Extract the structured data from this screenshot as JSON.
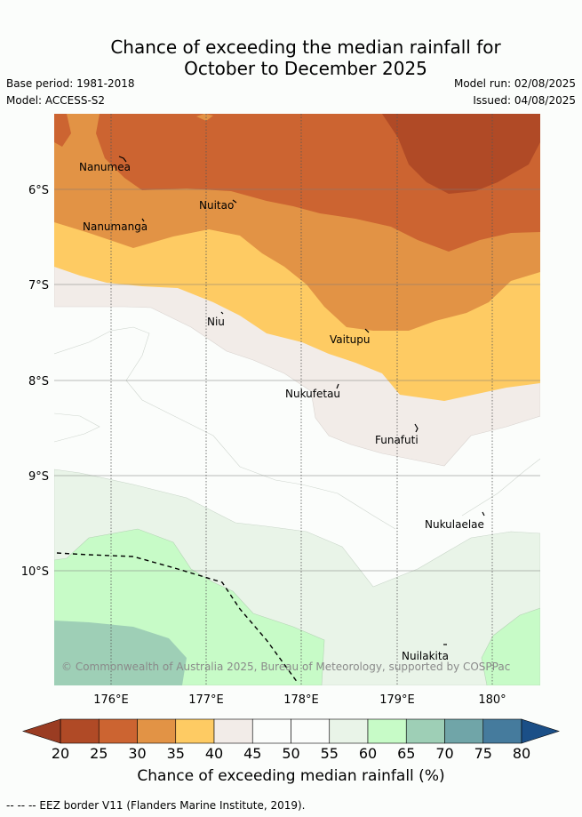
{
  "title_line1": "Chance of exceeding the median rainfall for",
  "title_line2": "October to December 2025",
  "base_period": "Base period: 1981-2018",
  "model": "Model: ACCESS-S2",
  "model_run": "Model run: 02/08/2025",
  "issued": "Issued: 04/08/2025",
  "copyright": "© Commonwealth of Australia 2025, Bureau of Meteorology, supported by COSPPac",
  "lat_ticks": [
    "6°S",
    "7°S",
    "8°S",
    "9°S",
    "10°S"
  ],
  "lon_ticks": [
    "176°E",
    "177°E",
    "178°E",
    "179°E",
    "180°"
  ],
  "places": [
    "Nanumea",
    "Nuitao",
    "Nanumanga",
    "Niu",
    "Vaitupu",
    "Nukufetau",
    "Funafuti",
    "Nukulaelae",
    "Nuilakita"
  ],
  "colorbar": {
    "labels": [
      "20",
      "25",
      "30",
      "35",
      "40",
      "45",
      "50",
      "55",
      "60",
      "65",
      "70",
      "75",
      "80"
    ],
    "colors": [
      "#b04a26",
      "#cc6431",
      "#e29345",
      "#fecb63",
      "#f2ece8",
      "#fbfdfb",
      "#fbfdfb",
      "#e9f4e8",
      "#c7fbc7",
      "#9ecfb6",
      "#70a5a8",
      "#457b9d"
    ],
    "under_color": "#9a3c22",
    "over_color": "#1b4f87",
    "title": "Chance of exceeding median rainfall (%)"
  },
  "eez_note": "--  --  -- EEZ border V11 (Flanders Marine Institute, 2019)."
}
